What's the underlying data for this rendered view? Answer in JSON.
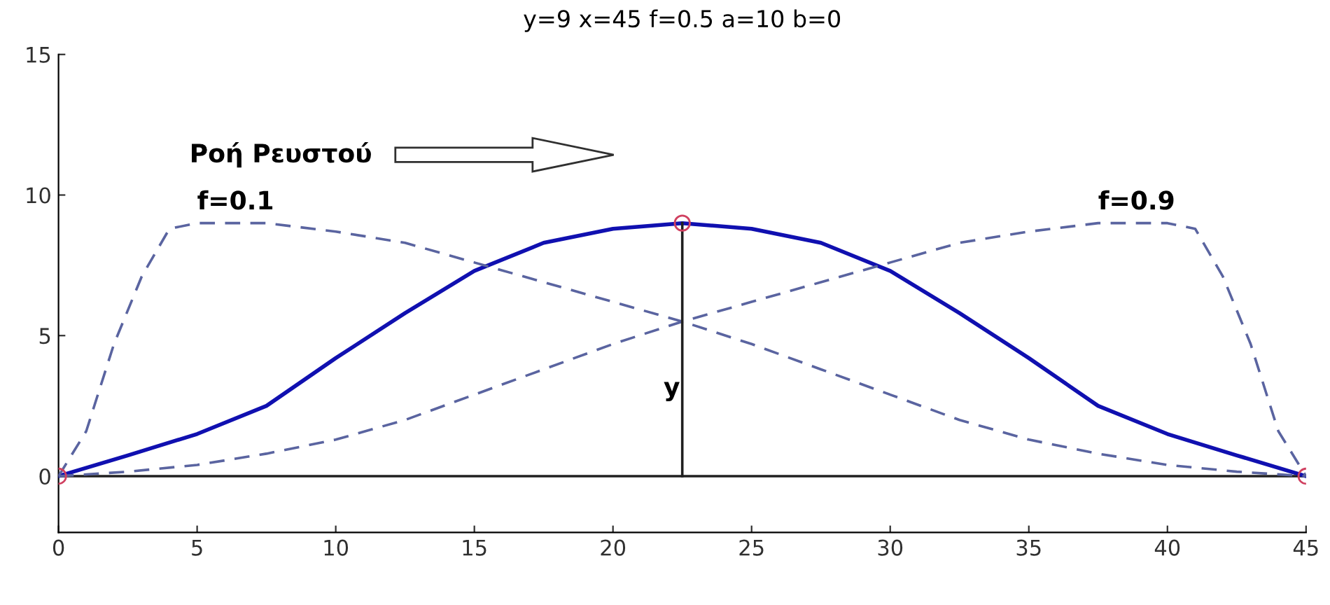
{
  "chart_data": {
    "type": "line",
    "title": "y=9 x=45 f=0.5 a=10 b=0",
    "xlim": [
      0,
      45
    ],
    "ylim": [
      -2,
      15
    ],
    "xticks": [
      0,
      5,
      10,
      15,
      20,
      25,
      30,
      35,
      40,
      45
    ],
    "yticks": [
      0,
      5,
      10,
      15
    ],
    "grid": false,
    "legend": false,
    "series": [
      {
        "color": "#1010b0",
        "line_style": "solid",
        "marker": "none",
        "x": [
          0,
          2.5,
          5,
          7.5,
          10,
          12.5,
          15,
          17.5,
          20,
          22.5,
          25,
          27.5,
          30,
          32.5,
          35,
          37.5,
          40,
          42.5,
          45
        ],
        "values": [
          0,
          0.74,
          1.5,
          2.5,
          4.2,
          5.8,
          7.3,
          8.3,
          8.8,
          9,
          8.8,
          8.3,
          7.3,
          5.8,
          4.2,
          2.5,
          1.5,
          0.74,
          0
        ]
      },
      {
        "color": "#5a64a0",
        "line_style": "dashed",
        "marker": "none",
        "x": [
          0,
          1,
          2,
          3,
          4,
          5,
          7.5,
          10,
          12.5,
          15,
          17.5,
          20,
          22.5,
          25,
          27.5,
          30,
          32.5,
          35,
          37.5,
          40,
          42.5,
          45
        ],
        "values": [
          0,
          1.6,
          4.7,
          7.1,
          8.8,
          9,
          9,
          8.7,
          8.3,
          7.6,
          6.9,
          6.2,
          5.5,
          4.7,
          3.8,
          2.9,
          2.0,
          1.3,
          0.8,
          0.4,
          0.16,
          0
        ]
      },
      {
        "color": "#5a64a0",
        "line_style": "dashed",
        "marker": "none",
        "x": [
          0,
          2.5,
          5,
          7.5,
          10,
          12.5,
          15,
          17.5,
          20,
          22.5,
          25,
          27.5,
          30,
          32.5,
          35,
          37.5,
          40,
          41,
          42,
          43,
          44,
          45
        ],
        "values": [
          0,
          0.16,
          0.4,
          0.8,
          1.3,
          2.0,
          2.9,
          3.8,
          4.7,
          5.5,
          6.2,
          6.9,
          7.6,
          8.3,
          8.7,
          9,
          9,
          8.8,
          7.1,
          4.7,
          1.6,
          0
        ]
      },
      {
        "color": "#202020",
        "line_style": "solid",
        "marker": "none",
        "x": [
          22.5,
          22.5
        ],
        "values": [
          0,
          9
        ]
      },
      {
        "type": "scatter",
        "color": "#d04060",
        "marker": "circle",
        "x": [
          0,
          22.5,
          45
        ],
        "values": [
          0,
          9,
          0
        ]
      }
    ],
    "ref_lines": [
      {
        "axis": "y",
        "value": 0,
        "label": null,
        "color": "#202020",
        "line_style": "solid"
      }
    ],
    "annotations": [
      {
        "text": "f=0.1",
        "x": 5,
        "y": 9
      },
      {
        "text": "f=0.9",
        "x": 37.5,
        "y": 9
      },
      "y",
      "Ροή Ρευστού"
    ]
  }
}
